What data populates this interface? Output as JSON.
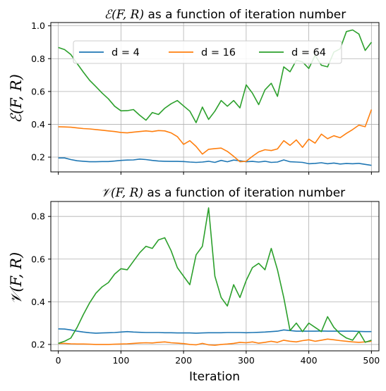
{
  "chart_data": [
    {
      "type": "line",
      "title_symbol": "ℰ",
      "title_args": "(F, R)",
      "title_rest": " as a function of iteration number",
      "ylabel_symbol": "ℰ",
      "ylabel_args": "(F, R)",
      "xlabel": "",
      "xlim": [
        -12,
        512
      ],
      "ylim": [
        0.11,
        1.02
      ],
      "xticks": [
        0,
        100,
        200,
        300,
        400,
        500
      ],
      "show_xtick_labels": false,
      "yticks": [
        0.2,
        0.4,
        0.6,
        0.8,
        1.0
      ],
      "ytick_labels": [
        "0.2",
        "0.4",
        "0.6",
        "0.8",
        "1.0"
      ],
      "grid": true,
      "legend": {
        "placement": "top",
        "columns": 3
      },
      "series": [
        {
          "name": "d = 4",
          "color": "#1f77b4",
          "x": [
            0,
            10,
            20,
            30,
            40,
            50,
            60,
            70,
            80,
            90,
            100,
            110,
            120,
            130,
            140,
            150,
            160,
            170,
            180,
            190,
            200,
            210,
            220,
            230,
            240,
            250,
            260,
            270,
            280,
            290,
            300,
            310,
            320,
            330,
            340,
            350,
            360,
            370,
            380,
            390,
            400,
            410,
            420,
            430,
            440,
            450,
            460,
            470,
            480,
            490,
            500
          ],
          "y": [
            0.195,
            0.195,
            0.185,
            0.178,
            0.175,
            0.172,
            0.172,
            0.173,
            0.173,
            0.176,
            0.18,
            0.182,
            0.183,
            0.188,
            0.185,
            0.18,
            0.176,
            0.175,
            0.174,
            0.174,
            0.173,
            0.17,
            0.168,
            0.17,
            0.175,
            0.168,
            0.18,
            0.172,
            0.182,
            0.178,
            0.172,
            0.174,
            0.17,
            0.175,
            0.168,
            0.17,
            0.183,
            0.172,
            0.17,
            0.168,
            0.16,
            0.162,
            0.166,
            0.16,
            0.164,
            0.158,
            0.161,
            0.16,
            0.162,
            0.156,
            0.15
          ]
        },
        {
          "name": "d = 16",
          "color": "#ff7f0e",
          "x": [
            0,
            10,
            20,
            30,
            40,
            50,
            60,
            70,
            80,
            90,
            100,
            110,
            120,
            130,
            140,
            150,
            160,
            170,
            180,
            190,
            200,
            210,
            220,
            230,
            240,
            250,
            260,
            270,
            280,
            290,
            300,
            310,
            320,
            330,
            340,
            350,
            360,
            370,
            380,
            390,
            400,
            410,
            420,
            430,
            440,
            450,
            460,
            470,
            480,
            490,
            500
          ],
          "y": [
            0.385,
            0.384,
            0.382,
            0.378,
            0.374,
            0.372,
            0.368,
            0.364,
            0.36,
            0.356,
            0.35,
            0.348,
            0.352,
            0.356,
            0.36,
            0.356,
            0.362,
            0.36,
            0.348,
            0.325,
            0.278,
            0.3,
            0.265,
            0.218,
            0.248,
            0.252,
            0.255,
            0.235,
            0.205,
            0.172,
            0.175,
            0.205,
            0.232,
            0.245,
            0.24,
            0.25,
            0.3,
            0.272,
            0.305,
            0.26,
            0.31,
            0.285,
            0.34,
            0.312,
            0.33,
            0.318,
            0.345,
            0.368,
            0.395,
            0.385,
            0.49
          ]
        },
        {
          "name": "d = 64",
          "color": "#2ca02c",
          "x": [
            0,
            10,
            20,
            30,
            40,
            50,
            60,
            70,
            80,
            90,
            100,
            110,
            120,
            130,
            140,
            150,
            160,
            170,
            180,
            190,
            200,
            210,
            220,
            230,
            240,
            250,
            260,
            270,
            280,
            290,
            300,
            310,
            320,
            330,
            340,
            350,
            360,
            370,
            380,
            390,
            400,
            410,
            420,
            430,
            440,
            450,
            460,
            470,
            480,
            490,
            500
          ],
          "y": [
            0.868,
            0.855,
            0.825,
            0.77,
            0.718,
            0.668,
            0.63,
            0.59,
            0.555,
            0.51,
            0.482,
            0.483,
            0.49,
            0.455,
            0.425,
            0.472,
            0.46,
            0.498,
            0.525,
            0.545,
            0.512,
            0.48,
            0.41,
            0.505,
            0.43,
            0.48,
            0.545,
            0.51,
            0.545,
            0.5,
            0.64,
            0.59,
            0.52,
            0.61,
            0.65,
            0.57,
            0.75,
            0.72,
            0.79,
            0.78,
            0.74,
            0.82,
            0.76,
            0.75,
            0.84,
            0.86,
            0.965,
            0.975,
            0.95,
            0.85,
            0.9
          ]
        }
      ]
    },
    {
      "type": "line",
      "title_symbol": "𝒱",
      "title_args": "(F, R)",
      "title_rest": " as a function of iteration number",
      "ylabel_symbol": "𝒱",
      "ylabel_args": "(F, R)",
      "xlabel": "Iteration",
      "xlim": [
        -12,
        512
      ],
      "ylim": [
        0.17,
        0.87
      ],
      "xticks": [
        0,
        100,
        200,
        300,
        400,
        500
      ],
      "xtick_labels": [
        "0",
        "100",
        "200",
        "300",
        "400",
        "500"
      ],
      "show_xtick_labels": true,
      "yticks": [
        0.2,
        0.4,
        0.6,
        0.8
      ],
      "ytick_labels": [
        "0.2",
        "0.4",
        "0.6",
        "0.8"
      ],
      "grid": true,
      "series": [
        {
          "name": "d = 4",
          "color": "#1f77b4",
          "x": [
            0,
            10,
            20,
            30,
            40,
            50,
            60,
            70,
            80,
            90,
            100,
            110,
            120,
            130,
            140,
            150,
            160,
            170,
            180,
            190,
            200,
            210,
            220,
            230,
            240,
            250,
            260,
            270,
            280,
            290,
            300,
            310,
            320,
            330,
            340,
            350,
            360,
            370,
            380,
            390,
            400,
            410,
            420,
            430,
            440,
            450,
            460,
            470,
            480,
            490,
            500
          ],
          "y": [
            0.273,
            0.272,
            0.268,
            0.262,
            0.258,
            0.255,
            0.253,
            0.254,
            0.255,
            0.256,
            0.258,
            0.26,
            0.258,
            0.257,
            0.256,
            0.256,
            0.256,
            0.255,
            0.255,
            0.254,
            0.254,
            0.254,
            0.253,
            0.254,
            0.255,
            0.255,
            0.255,
            0.256,
            0.256,
            0.256,
            0.255,
            0.256,
            0.257,
            0.258,
            0.26,
            0.262,
            0.268,
            0.265,
            0.262,
            0.262,
            0.262,
            0.262,
            0.263,
            0.262,
            0.262,
            0.262,
            0.262,
            0.262,
            0.261,
            0.26,
            0.26
          ]
        },
        {
          "name": "d = 16",
          "color": "#ff7f0e",
          "x": [
            0,
            10,
            20,
            30,
            40,
            50,
            60,
            70,
            80,
            90,
            100,
            110,
            120,
            130,
            140,
            150,
            160,
            170,
            180,
            190,
            200,
            210,
            220,
            230,
            240,
            250,
            260,
            270,
            280,
            290,
            300,
            310,
            320,
            330,
            340,
            350,
            360,
            370,
            380,
            390,
            400,
            410,
            420,
            430,
            440,
            450,
            460,
            470,
            480,
            490,
            500
          ],
          "y": [
            0.205,
            0.205,
            0.203,
            0.202,
            0.202,
            0.201,
            0.2,
            0.2,
            0.2,
            0.201,
            0.202,
            0.203,
            0.205,
            0.207,
            0.208,
            0.207,
            0.21,
            0.212,
            0.208,
            0.206,
            0.204,
            0.2,
            0.198,
            0.205,
            0.198,
            0.196,
            0.2,
            0.202,
            0.205,
            0.21,
            0.208,
            0.212,
            0.206,
            0.21,
            0.215,
            0.21,
            0.22,
            0.215,
            0.212,
            0.218,
            0.222,
            0.215,
            0.22,
            0.225,
            0.222,
            0.218,
            0.215,
            0.212,
            0.21,
            0.212,
            0.215
          ]
        },
        {
          "name": "d = 64",
          "color": "#2ca02c",
          "x": [
            0,
            10,
            20,
            30,
            40,
            50,
            60,
            70,
            80,
            90,
            100,
            110,
            120,
            130,
            140,
            150,
            160,
            170,
            180,
            190,
            200,
            210,
            220,
            230,
            240,
            250,
            260,
            270,
            280,
            290,
            300,
            310,
            320,
            330,
            340,
            350,
            360,
            370,
            380,
            390,
            400,
            410,
            420,
            430,
            440,
            450,
            460,
            470,
            480,
            490,
            500
          ],
          "y": [
            0.205,
            0.215,
            0.23,
            0.28,
            0.34,
            0.395,
            0.44,
            0.47,
            0.49,
            0.53,
            0.555,
            0.55,
            0.59,
            0.63,
            0.66,
            0.65,
            0.69,
            0.7,
            0.64,
            0.56,
            0.52,
            0.48,
            0.62,
            0.66,
            0.84,
            0.52,
            0.42,
            0.38,
            0.48,
            0.42,
            0.5,
            0.56,
            0.58,
            0.55,
            0.65,
            0.55,
            0.42,
            0.265,
            0.3,
            0.26,
            0.3,
            0.28,
            0.26,
            0.33,
            0.28,
            0.25,
            0.23,
            0.22,
            0.26,
            0.21,
            0.22
          ]
        }
      ]
    }
  ]
}
